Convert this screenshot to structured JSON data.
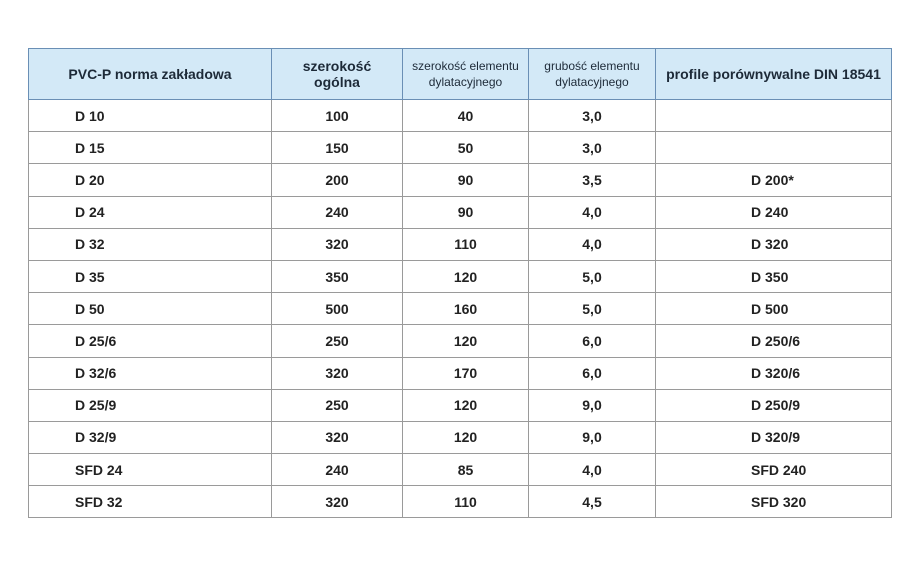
{
  "table": {
    "header": [
      "PVC-P norma zakładowa",
      "szerokość ogólna",
      "szerokość elementu dylatacyjnego",
      "grubość elementu dylatacyjnego",
      "profile porównywalne DIN 18541"
    ],
    "rows": [
      [
        "D 10",
        "100",
        "40",
        "3,0",
        ""
      ],
      [
        "D 15",
        "150",
        "50",
        "3,0",
        ""
      ],
      [
        "D 20",
        "200",
        "90",
        "3,5",
        "D 200*"
      ],
      [
        "D 24",
        "240",
        "90",
        "4,0",
        "D 240"
      ],
      [
        "D 32",
        "320",
        "110",
        "4,0",
        "D 320"
      ],
      [
        "D 35",
        "350",
        "120",
        "5,0",
        "D 350"
      ],
      [
        "D 50",
        "500",
        "160",
        "5,0",
        "D 500"
      ],
      [
        "D 25/6",
        "250",
        "120",
        "6,0",
        "D 250/6"
      ],
      [
        "D 32/6",
        "320",
        "170",
        "6,0",
        "D 320/6"
      ],
      [
        "D 25/9",
        "250",
        "120",
        "9,0",
        "D 250/9"
      ],
      [
        "D 32/9",
        "320",
        "120",
        "9,0",
        "D 320/9"
      ],
      [
        "SFD 24",
        "240",
        "85",
        "4,0",
        "SFD 240"
      ],
      [
        "SFD 32",
        "320",
        "110",
        "4,5",
        "SFD 320"
      ]
    ]
  }
}
